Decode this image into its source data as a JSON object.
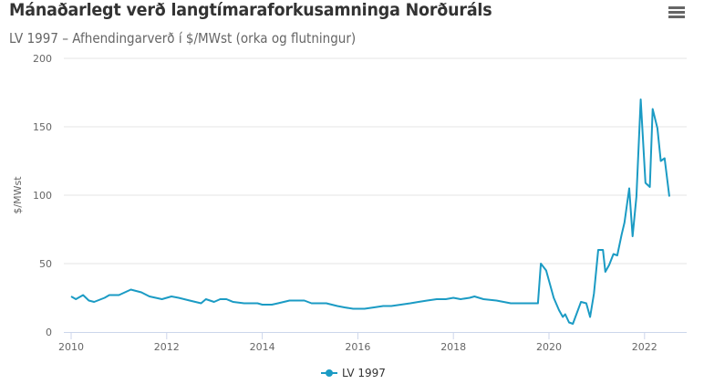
{
  "header": {
    "title": "Mánaðarlegt verð langtímaraforkusamninga Norðuráls",
    "subtitle": "LV 1997 – Afhendingarverð í $/MWst (orka og flutningur)",
    "menu_icon": "hamburger-menu-icon"
  },
  "colors": {
    "series": "#1b9bc4",
    "grid": "#e6e6e6",
    "axis": "#ccd6eb",
    "text": "#666666",
    "title": "#333333"
  },
  "chart_data": {
    "type": "line",
    "title": "Mánaðarlegt verð langtímaraforkusamninga Norðuráls",
    "subtitle": "LV 1997 – Afhendingarverð í $/MWst (orka og flutningur)",
    "xlabel": "",
    "ylabel": "$/MWst",
    "xlim": [
      2010,
      2022.9
    ],
    "ylim": [
      0,
      200
    ],
    "x_ticks": [
      "2010",
      "2012",
      "2014",
      "2016",
      "2018",
      "2020",
      "2022"
    ],
    "y_ticks": [
      "0",
      "50",
      "100",
      "150",
      "200"
    ],
    "grid": true,
    "legend_position": "bottom-center",
    "series": [
      {
        "name": "LV 1997",
        "points": [
          [
            2010.0,
            26
          ],
          [
            2010.1,
            24
          ],
          [
            2010.25,
            27
          ],
          [
            2010.37,
            23
          ],
          [
            2010.48,
            22
          ],
          [
            2010.7,
            25
          ],
          [
            2010.8,
            27
          ],
          [
            2011.0,
            27
          ],
          [
            2011.25,
            31
          ],
          [
            2011.47,
            29
          ],
          [
            2011.64,
            26
          ],
          [
            2011.9,
            24
          ],
          [
            2012.0,
            25
          ],
          [
            2012.1,
            26
          ],
          [
            2012.25,
            25
          ],
          [
            2012.48,
            23
          ],
          [
            2012.72,
            21
          ],
          [
            2012.82,
            24
          ],
          [
            2012.99,
            22
          ],
          [
            2013.12,
            24
          ],
          [
            2013.25,
            24
          ],
          [
            2013.39,
            22
          ],
          [
            2013.62,
            21
          ],
          [
            2013.9,
            21
          ],
          [
            2014.0,
            20
          ],
          [
            2014.2,
            20
          ],
          [
            2014.33,
            21
          ],
          [
            2014.57,
            23
          ],
          [
            2014.8,
            23
          ],
          [
            2014.88,
            23
          ],
          [
            2015.03,
            21
          ],
          [
            2015.18,
            21
          ],
          [
            2015.34,
            21
          ],
          [
            2015.57,
            19
          ],
          [
            2015.72,
            18
          ],
          [
            2015.9,
            17
          ],
          [
            2016.14,
            17
          ],
          [
            2016.34,
            18
          ],
          [
            2016.53,
            19
          ],
          [
            2016.7,
            19
          ],
          [
            2016.9,
            20
          ],
          [
            2017.1,
            21
          ],
          [
            2017.27,
            22
          ],
          [
            2017.45,
            23
          ],
          [
            2017.65,
            24
          ],
          [
            2017.84,
            24
          ],
          [
            2018.0,
            25
          ],
          [
            2018.15,
            24
          ],
          [
            2018.34,
            25
          ],
          [
            2018.44,
            26
          ],
          [
            2018.63,
            24
          ],
          [
            2018.9,
            23
          ],
          [
            2019.2,
            21
          ],
          [
            2019.48,
            21
          ],
          [
            2019.77,
            21
          ],
          [
            2019.83,
            50
          ],
          [
            2019.94,
            45
          ],
          [
            2020.1,
            25
          ],
          [
            2020.21,
            16
          ],
          [
            2020.29,
            11
          ],
          [
            2020.34,
            13
          ],
          [
            2020.42,
            7
          ],
          [
            2020.5,
            6
          ],
          [
            2020.67,
            22
          ],
          [
            2020.78,
            21
          ],
          [
            2020.86,
            11
          ],
          [
            2020.94,
            28
          ],
          [
            2021.03,
            60
          ],
          [
            2021.13,
            60
          ],
          [
            2021.18,
            44
          ],
          [
            2021.26,
            49
          ],
          [
            2021.35,
            57
          ],
          [
            2021.43,
            56
          ],
          [
            2021.52,
            71
          ],
          [
            2021.58,
            80
          ],
          [
            2021.68,
            105
          ],
          [
            2021.75,
            70
          ],
          [
            2021.83,
            99
          ],
          [
            2021.92,
            170
          ],
          [
            2022.02,
            109
          ],
          [
            2022.11,
            106
          ],
          [
            2022.17,
            163
          ],
          [
            2022.27,
            149
          ],
          [
            2022.34,
            125
          ],
          [
            2022.42,
            127
          ],
          [
            2022.52,
            99
          ]
        ]
      }
    ]
  },
  "legend": {
    "items": [
      {
        "label": "LV 1997",
        "icon": "line-marker-icon"
      }
    ]
  }
}
